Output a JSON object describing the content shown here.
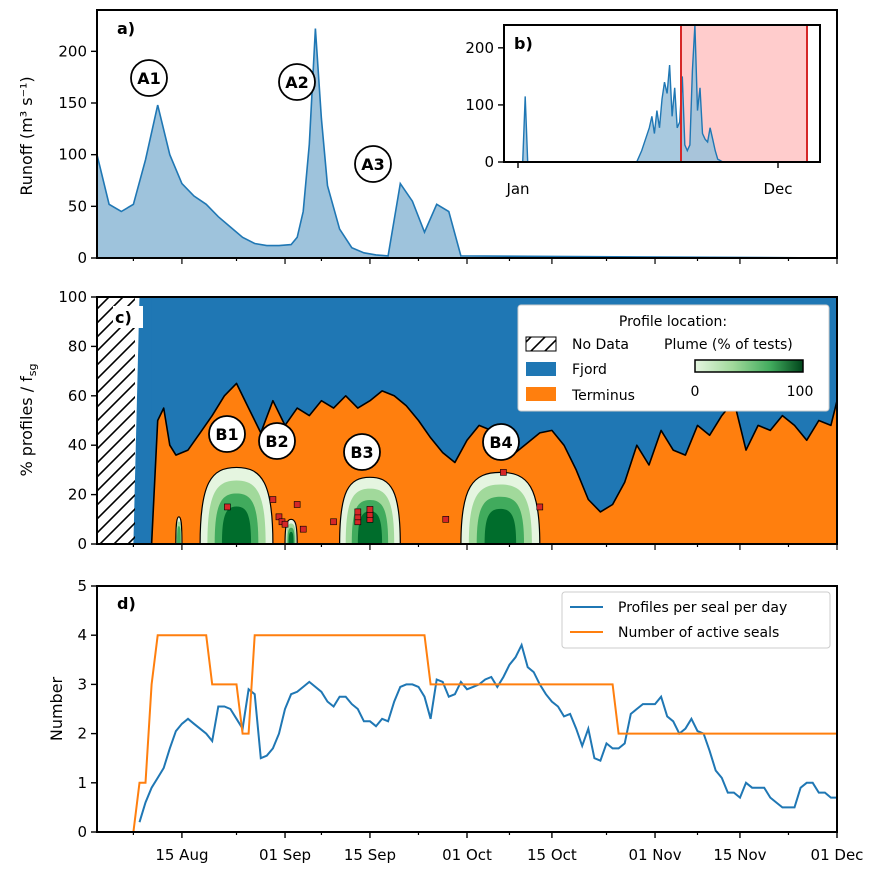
{
  "colors": {
    "runoff": "#1f77b4",
    "runoff_fill": "#9ec3dc",
    "fjord": "#1f77b4",
    "terminus": "#ff7f0e",
    "seals": "#ff7f0e",
    "profiles": "#1f77b4",
    "shade": "#ffcccc",
    "shade_line": "#d62728",
    "marker": "#d62728",
    "green_dark": "#006d2c",
    "green_mid": "#41ab5d",
    "green_light": "#a1d99b",
    "green_pale": "#e5f5e0"
  },
  "chart_data": [
    {
      "panel": "a)",
      "type": "area",
      "ylabel": "Runoff (m³ s⁻¹)",
      "ylim": [
        0,
        240
      ],
      "yticks": [
        "0",
        "50",
        "100",
        "150",
        "200"
      ],
      "x_start": "2016-08-01",
      "x_end": "2016-12-01",
      "x": [
        0,
        2,
        4,
        6,
        8,
        10,
        12,
        14,
        16,
        18,
        20,
        22,
        24,
        26,
        28,
        30,
        32,
        33,
        34,
        35,
        36,
        37,
        38,
        40,
        42,
        44,
        46,
        48,
        50,
        52,
        54,
        56,
        58,
        60
      ],
      "values": [
        100,
        52,
        45,
        52,
        95,
        148,
        100,
        72,
        60,
        52,
        40,
        30,
        20,
        14,
        12,
        12,
        13,
        20,
        45,
        110,
        222,
        135,
        70,
        28,
        10,
        5,
        3,
        2,
        72,
        55,
        25,
        52,
        45,
        2
      ],
      "annotations": [
        "A1",
        "A2",
        "A3"
      ]
    },
    {
      "panel": "b)",
      "type": "area",
      "inset": true,
      "ylim": [
        0,
        240
      ],
      "yticks": [
        "0",
        "100",
        "200"
      ],
      "xticks": [
        "Jan",
        "Dec"
      ],
      "x_day": [
        0,
        5,
        6,
        7,
        8,
        10,
        50,
        52,
        55,
        56,
        57,
        58,
        59,
        60,
        61,
        62,
        63,
        64,
        65,
        66,
        67,
        68,
        69,
        70,
        71,
        72,
        73,
        74,
        75,
        76,
        77,
        78,
        79,
        80,
        81,
        82,
        84,
        90
      ],
      "values": [
        0,
        0,
        115,
        0,
        0,
        0,
        0,
        20,
        60,
        80,
        50,
        90,
        60,
        110,
        140,
        120,
        170,
        80,
        130,
        60,
        70,
        150,
        30,
        20,
        30,
        160,
        240,
        90,
        130,
        50,
        40,
        35,
        60,
        40,
        20,
        5,
        0,
        0
      ],
      "shaded_range": [
        "Aug",
        "Dec"
      ]
    },
    {
      "panel": "c)",
      "type": "area",
      "ylabel": "% profiles / f",
      "ylabel_sub": "sg",
      "ylim": [
        0,
        100
      ],
      "yticks": [
        "0",
        "20",
        "40",
        "60",
        "80",
        "100"
      ],
      "no_data_range_days": [
        0,
        9
      ],
      "terminus_x": [
        9,
        10,
        11,
        12,
        13,
        15,
        17,
        19,
        21,
        23,
        25,
        27,
        29,
        31,
        33,
        35,
        37,
        39,
        41,
        43,
        45,
        47,
        49,
        51,
        53,
        55,
        57,
        59,
        61,
        63,
        65,
        67,
        69,
        71,
        73,
        75,
        77,
        79,
        81,
        83,
        85,
        87,
        89,
        91,
        93,
        95,
        97,
        99,
        101,
        103,
        105,
        107,
        109,
        111,
        113,
        115,
        117,
        119,
        121,
        122
      ],
      "terminus_y": [
        0,
        50,
        55,
        40,
        36,
        38,
        45,
        52,
        60,
        65,
        55,
        45,
        58,
        48,
        55,
        52,
        58,
        55,
        60,
        55,
        58,
        62,
        60,
        56,
        50,
        43,
        37,
        33,
        42,
        48,
        46,
        42,
        37,
        41,
        45,
        46,
        40,
        30,
        18,
        13,
        16,
        25,
        40,
        32,
        46,
        38,
        36,
        48,
        44,
        52,
        58,
        38,
        48,
        46,
        52,
        48,
        42,
        50,
        48,
        58
      ],
      "plume_outer": [
        {
          "x0": 13,
          "x1": 14,
          "y": 11
        },
        {
          "x0": 17,
          "x1": 29,
          "y": 31
        },
        {
          "x0": 31,
          "x1": 33,
          "y": 10
        },
        {
          "x0": 40,
          "x1": 50,
          "y": 27
        },
        {
          "x0": 60,
          "x1": 73,
          "y": 29
        }
      ],
      "markers": [
        {
          "x": 21.5,
          "y": 15
        },
        {
          "x": 29,
          "y": 18
        },
        {
          "x": 30,
          "y": 11
        },
        {
          "x": 30.5,
          "y": 9
        },
        {
          "x": 31,
          "y": 8
        },
        {
          "x": 33,
          "y": 16
        },
        {
          "x": 34,
          "y": 6
        },
        {
          "x": 39,
          "y": 9
        },
        {
          "x": 43,
          "y": 9
        },
        {
          "x": 43,
          "y": 11
        },
        {
          "x": 43,
          "y": 13
        },
        {
          "x": 45,
          "y": 10
        },
        {
          "x": 45,
          "y": 12
        },
        {
          "x": 45,
          "y": 14
        },
        {
          "x": 57.5,
          "y": 10
        },
        {
          "x": 67,
          "y": 29
        },
        {
          "x": 73,
          "y": 15
        }
      ],
      "annotations": [
        "B1",
        "B2",
        "B3",
        "B4"
      ],
      "legend": {
        "title": "Profile location:",
        "no_data": "No Data",
        "fjord": "Fjord",
        "terminus": "Terminus",
        "plume_title": "Plume (% of tests)",
        "plume_min": "0",
        "plume_max": "100"
      }
    },
    {
      "panel": "d)",
      "type": "line",
      "ylabel": "Number",
      "ylim": [
        0,
        5
      ],
      "yticks": [
        "0",
        "1",
        "2",
        "3",
        "4",
        "5"
      ],
      "xticks": [
        "15 Aug",
        "01 Sep",
        "15 Sep",
        "01 Oct",
        "15 Oct",
        "01 Nov",
        "15 Nov",
        "01 Dec"
      ],
      "series": [
        {
          "name": "Profiles per seal per day",
          "x": [
            7,
            8,
            9,
            10,
            11,
            12,
            13,
            14,
            15,
            16,
            17,
            18,
            19,
            20,
            21,
            22,
            23,
            24,
            25,
            26,
            27,
            28,
            29,
            30,
            31,
            32,
            33,
            34,
            35,
            36,
            37,
            38,
            39,
            40,
            41,
            42,
            43,
            44,
            45,
            46,
            47,
            48,
            49,
            50,
            51,
            52,
            53,
            54,
            55,
            56,
            57,
            58,
            59,
            60,
            61,
            62,
            63,
            64,
            65,
            66,
            67,
            68,
            69,
            70,
            71,
            72,
            73,
            74,
            75,
            76,
            77,
            78,
            79,
            80,
            81,
            82,
            83,
            84,
            85,
            86,
            87,
            88,
            89,
            90,
            91,
            92,
            93,
            94,
            95,
            96,
            97,
            98,
            99,
            100,
            101,
            102,
            103,
            104,
            105,
            106,
            107,
            108,
            109,
            110,
            111,
            112,
            113,
            114,
            115,
            116,
            117,
            118,
            119,
            120,
            121,
            122
          ],
          "y": [
            0.2,
            0.6,
            0.9,
            1.1,
            1.3,
            1.7,
            2.05,
            2.2,
            2.3,
            2.2,
            2.1,
            2.0,
            1.85,
            2.55,
            2.55,
            2.5,
            2.3,
            2.1,
            2.9,
            2.8,
            1.5,
            1.55,
            1.7,
            2.0,
            2.5,
            2.8,
            2.85,
            2.95,
            3.05,
            2.95,
            2.85,
            2.65,
            2.55,
            2.75,
            2.75,
            2.6,
            2.5,
            2.25,
            2.25,
            2.15,
            2.3,
            2.25,
            2.65,
            2.95,
            3.0,
            3.0,
            2.95,
            2.75,
            2.3,
            3.1,
            3.05,
            2.75,
            2.8,
            3.05,
            2.9,
            2.95,
            3.0,
            3.1,
            3.15,
            2.95,
            3.15,
            3.4,
            3.55,
            3.8,
            3.35,
            3.25,
            3.0,
            2.8,
            2.65,
            2.55,
            2.35,
            2.4,
            2.1,
            1.75,
            2.1,
            1.5,
            1.45,
            1.8,
            1.7,
            1.7,
            1.8,
            2.4,
            2.5,
            2.6,
            2.6,
            2.6,
            2.75,
            2.35,
            2.25,
            2.0,
            2.1,
            2.3,
            2.05,
            2.0,
            1.65,
            1.25,
            1.1,
            0.8,
            0.8,
            0.7,
            1.0,
            0.9,
            0.9,
            0.9,
            0.7,
            0.6,
            0.5,
            0.5,
            0.5,
            0.9,
            1.0,
            1.0,
            0.8,
            0.8,
            0.7,
            0.7
          ]
        },
        {
          "name": "Number of active seals",
          "x": [
            6,
            7,
            8,
            9,
            10,
            11,
            12,
            13,
            14,
            15,
            16,
            17,
            18,
            19,
            20,
            21,
            22,
            23,
            24,
            25,
            26,
            27,
            54,
            55,
            85,
            86,
            122
          ],
          "y": [
            0,
            1,
            1,
            3,
            4,
            4,
            4,
            4,
            4,
            4,
            4,
            4,
            4,
            3,
            3,
            3,
            3,
            3,
            2,
            2,
            4,
            4,
            4,
            3,
            3,
            2,
            2
          ]
        }
      ]
    }
  ]
}
